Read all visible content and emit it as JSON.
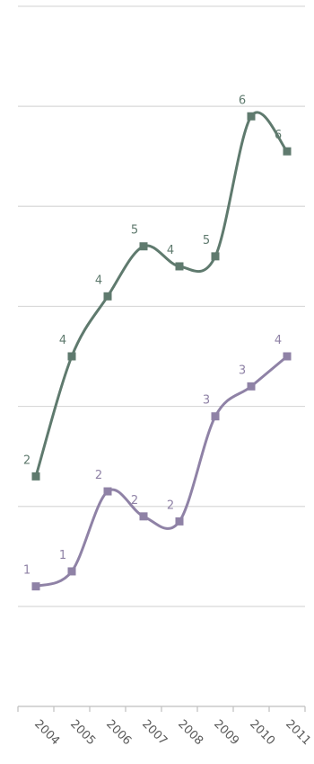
{
  "chart_data": {
    "type": "line",
    "title": "",
    "xlabel": "",
    "ylabel": "",
    "categories": [
      "2004",
      "2005",
      "2006",
      "2007",
      "2008",
      "2009",
      "2010",
      "2011"
    ],
    "ylim": [
      0,
      7
    ],
    "grid": true,
    "legend": "none",
    "smooth": true,
    "series": [
      {
        "color": "#5f7a6e",
        "marker": "square",
        "values": [
          2.3,
          3.5,
          4.1,
          4.6,
          4.4,
          4.5,
          5.9,
          5.55
        ],
        "labels": [
          "2",
          "4",
          "4",
          "5",
          "4",
          "5",
          "6",
          "6"
        ]
      },
      {
        "color": "#8f82a6",
        "marker": "square",
        "values": [
          1.2,
          1.35,
          2.15,
          1.9,
          1.85,
          2.9,
          3.2,
          3.5
        ],
        "labels": [
          "1",
          "1",
          "2",
          "2",
          "2",
          "3",
          "3",
          "4"
        ]
      }
    ]
  }
}
